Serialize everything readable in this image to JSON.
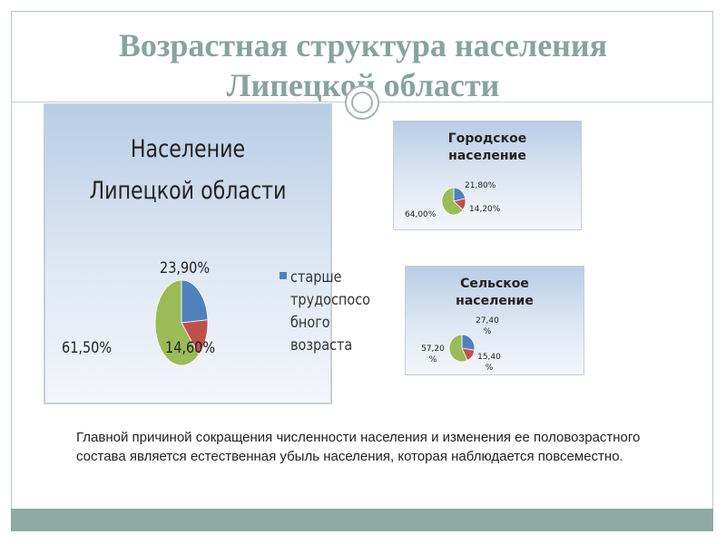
{
  "slide": {
    "title_line1": "Возрастная структура населения",
    "title_line2": "Липецкой области",
    "body_text": "Главной причиной сокращения численности населения и изменения ее половозрастного состава является естественная убыль населения, которая наблюдается повсеместно."
  },
  "chart_data": [
    {
      "type": "pie",
      "title_line1": "Население",
      "title_line2": "Липецкой области",
      "slices": [
        {
          "value": 23.9,
          "label": "23,90%",
          "color": "#4f81bd"
        },
        {
          "value": 14.6,
          "label": "14,60%",
          "color": "#c0504d"
        },
        {
          "value": 61.5,
          "label": "61,50%",
          "color": "#9bbb59"
        }
      ],
      "legend": [
        "старше трудоспосо бного возраста"
      ]
    },
    {
      "type": "pie",
      "title_line1": "Городское",
      "title_line2": "население",
      "slices": [
        {
          "value": 21.8,
          "label": "21,80%",
          "color": "#4f81bd"
        },
        {
          "value": 14.2,
          "label": "14,20%",
          "color": "#c0504d"
        },
        {
          "value": 64.0,
          "label": "64,00%",
          "color": "#9bbb59"
        }
      ]
    },
    {
      "type": "pie",
      "title_line1": "Сельское",
      "title_line2": "население",
      "slices": [
        {
          "value": 27.4,
          "label": "27,40 %",
          "color": "#4f81bd"
        },
        {
          "value": 15.4,
          "label": "15,40 %",
          "color": "#c0504d"
        },
        {
          "value": 57.2,
          "label": "57,20 %",
          "color": "#9bbb59"
        }
      ]
    }
  ]
}
